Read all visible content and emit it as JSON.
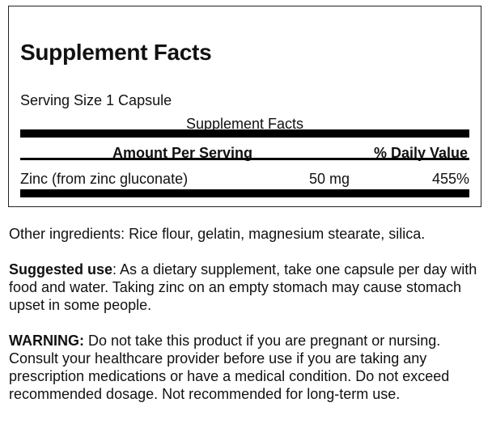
{
  "panel": {
    "title": "Supplement Facts",
    "serving_size": "Serving Size 1 Capsule",
    "subtitle": "Supplement Facts",
    "header": {
      "amount": "Amount Per Serving",
      "dv": "% Daily Value"
    },
    "rows": [
      {
        "name": "Zinc (from zinc gluconate)",
        "amount": "50 mg",
        "dv": "455%"
      }
    ]
  },
  "other_ingredients": "Other ingredients: Rice flour, gelatin, magnesium stearate, silica.",
  "suggested_use": {
    "label": "Suggested use",
    "text": ": As a dietary supplement, take one capsule per day with food and water. Taking zinc on an empty stomach may cause stomach upset in some people."
  },
  "warning": {
    "label": "WARNING:",
    "text": " Do not take this product if you are pregnant or nursing. Consult your healthcare provider before use if you are taking any prescription medications or have a medical condition. Do not exceed recommended dosage. Not recommended for long-term use."
  }
}
